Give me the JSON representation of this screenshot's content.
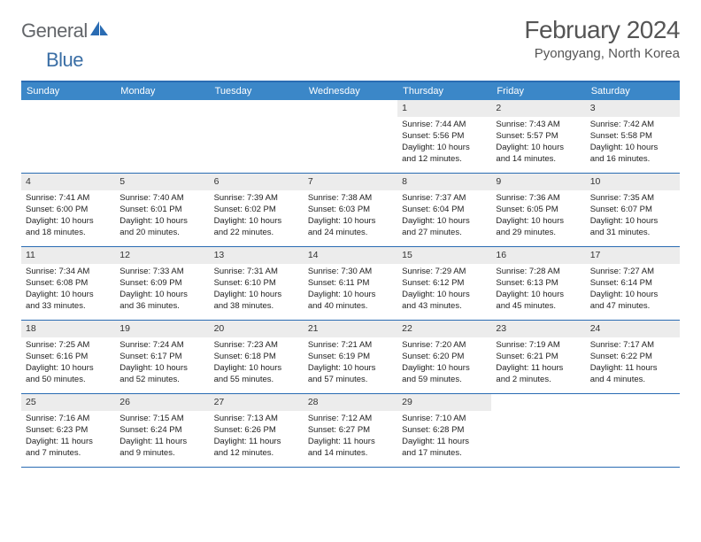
{
  "logo": {
    "text1": "General",
    "text2": "Blue"
  },
  "title": "February 2024",
  "location": "Pyongyang, North Korea",
  "day_headers": [
    "Sunday",
    "Monday",
    "Tuesday",
    "Wednesday",
    "Thursday",
    "Friday",
    "Saturday"
  ],
  "colors": {
    "header_bg": "#3b87c8",
    "header_border": "#2a6cb3",
    "daynum_bg": "#ececec",
    "text": "#222222",
    "title_color": "#555555"
  },
  "weeks": [
    [
      {
        "empty": true
      },
      {
        "empty": true
      },
      {
        "empty": true
      },
      {
        "empty": true
      },
      {
        "day": "1",
        "sunrise": "Sunrise: 7:44 AM",
        "sunset": "Sunset: 5:56 PM",
        "daylight1": "Daylight: 10 hours",
        "daylight2": "and 12 minutes."
      },
      {
        "day": "2",
        "sunrise": "Sunrise: 7:43 AM",
        "sunset": "Sunset: 5:57 PM",
        "daylight1": "Daylight: 10 hours",
        "daylight2": "and 14 minutes."
      },
      {
        "day": "3",
        "sunrise": "Sunrise: 7:42 AM",
        "sunset": "Sunset: 5:58 PM",
        "daylight1": "Daylight: 10 hours",
        "daylight2": "and 16 minutes."
      }
    ],
    [
      {
        "day": "4",
        "sunrise": "Sunrise: 7:41 AM",
        "sunset": "Sunset: 6:00 PM",
        "daylight1": "Daylight: 10 hours",
        "daylight2": "and 18 minutes."
      },
      {
        "day": "5",
        "sunrise": "Sunrise: 7:40 AM",
        "sunset": "Sunset: 6:01 PM",
        "daylight1": "Daylight: 10 hours",
        "daylight2": "and 20 minutes."
      },
      {
        "day": "6",
        "sunrise": "Sunrise: 7:39 AM",
        "sunset": "Sunset: 6:02 PM",
        "daylight1": "Daylight: 10 hours",
        "daylight2": "and 22 minutes."
      },
      {
        "day": "7",
        "sunrise": "Sunrise: 7:38 AM",
        "sunset": "Sunset: 6:03 PM",
        "daylight1": "Daylight: 10 hours",
        "daylight2": "and 24 minutes."
      },
      {
        "day": "8",
        "sunrise": "Sunrise: 7:37 AM",
        "sunset": "Sunset: 6:04 PM",
        "daylight1": "Daylight: 10 hours",
        "daylight2": "and 27 minutes."
      },
      {
        "day": "9",
        "sunrise": "Sunrise: 7:36 AM",
        "sunset": "Sunset: 6:05 PM",
        "daylight1": "Daylight: 10 hours",
        "daylight2": "and 29 minutes."
      },
      {
        "day": "10",
        "sunrise": "Sunrise: 7:35 AM",
        "sunset": "Sunset: 6:07 PM",
        "daylight1": "Daylight: 10 hours",
        "daylight2": "and 31 minutes."
      }
    ],
    [
      {
        "day": "11",
        "sunrise": "Sunrise: 7:34 AM",
        "sunset": "Sunset: 6:08 PM",
        "daylight1": "Daylight: 10 hours",
        "daylight2": "and 33 minutes."
      },
      {
        "day": "12",
        "sunrise": "Sunrise: 7:33 AM",
        "sunset": "Sunset: 6:09 PM",
        "daylight1": "Daylight: 10 hours",
        "daylight2": "and 36 minutes."
      },
      {
        "day": "13",
        "sunrise": "Sunrise: 7:31 AM",
        "sunset": "Sunset: 6:10 PM",
        "daylight1": "Daylight: 10 hours",
        "daylight2": "and 38 minutes."
      },
      {
        "day": "14",
        "sunrise": "Sunrise: 7:30 AM",
        "sunset": "Sunset: 6:11 PM",
        "daylight1": "Daylight: 10 hours",
        "daylight2": "and 40 minutes."
      },
      {
        "day": "15",
        "sunrise": "Sunrise: 7:29 AM",
        "sunset": "Sunset: 6:12 PM",
        "daylight1": "Daylight: 10 hours",
        "daylight2": "and 43 minutes."
      },
      {
        "day": "16",
        "sunrise": "Sunrise: 7:28 AM",
        "sunset": "Sunset: 6:13 PM",
        "daylight1": "Daylight: 10 hours",
        "daylight2": "and 45 minutes."
      },
      {
        "day": "17",
        "sunrise": "Sunrise: 7:27 AM",
        "sunset": "Sunset: 6:14 PM",
        "daylight1": "Daylight: 10 hours",
        "daylight2": "and 47 minutes."
      }
    ],
    [
      {
        "day": "18",
        "sunrise": "Sunrise: 7:25 AM",
        "sunset": "Sunset: 6:16 PM",
        "daylight1": "Daylight: 10 hours",
        "daylight2": "and 50 minutes."
      },
      {
        "day": "19",
        "sunrise": "Sunrise: 7:24 AM",
        "sunset": "Sunset: 6:17 PM",
        "daylight1": "Daylight: 10 hours",
        "daylight2": "and 52 minutes."
      },
      {
        "day": "20",
        "sunrise": "Sunrise: 7:23 AM",
        "sunset": "Sunset: 6:18 PM",
        "daylight1": "Daylight: 10 hours",
        "daylight2": "and 55 minutes."
      },
      {
        "day": "21",
        "sunrise": "Sunrise: 7:21 AM",
        "sunset": "Sunset: 6:19 PM",
        "daylight1": "Daylight: 10 hours",
        "daylight2": "and 57 minutes."
      },
      {
        "day": "22",
        "sunrise": "Sunrise: 7:20 AM",
        "sunset": "Sunset: 6:20 PM",
        "daylight1": "Daylight: 10 hours",
        "daylight2": "and 59 minutes."
      },
      {
        "day": "23",
        "sunrise": "Sunrise: 7:19 AM",
        "sunset": "Sunset: 6:21 PM",
        "daylight1": "Daylight: 11 hours",
        "daylight2": "and 2 minutes."
      },
      {
        "day": "24",
        "sunrise": "Sunrise: 7:17 AM",
        "sunset": "Sunset: 6:22 PM",
        "daylight1": "Daylight: 11 hours",
        "daylight2": "and 4 minutes."
      }
    ],
    [
      {
        "day": "25",
        "sunrise": "Sunrise: 7:16 AM",
        "sunset": "Sunset: 6:23 PM",
        "daylight1": "Daylight: 11 hours",
        "daylight2": "and 7 minutes."
      },
      {
        "day": "26",
        "sunrise": "Sunrise: 7:15 AM",
        "sunset": "Sunset: 6:24 PM",
        "daylight1": "Daylight: 11 hours",
        "daylight2": "and 9 minutes."
      },
      {
        "day": "27",
        "sunrise": "Sunrise: 7:13 AM",
        "sunset": "Sunset: 6:26 PM",
        "daylight1": "Daylight: 11 hours",
        "daylight2": "and 12 minutes."
      },
      {
        "day": "28",
        "sunrise": "Sunrise: 7:12 AM",
        "sunset": "Sunset: 6:27 PM",
        "daylight1": "Daylight: 11 hours",
        "daylight2": "and 14 minutes."
      },
      {
        "day": "29",
        "sunrise": "Sunrise: 7:10 AM",
        "sunset": "Sunset: 6:28 PM",
        "daylight1": "Daylight: 11 hours",
        "daylight2": "and 17 minutes."
      },
      {
        "empty": true
      },
      {
        "empty": true
      }
    ]
  ]
}
